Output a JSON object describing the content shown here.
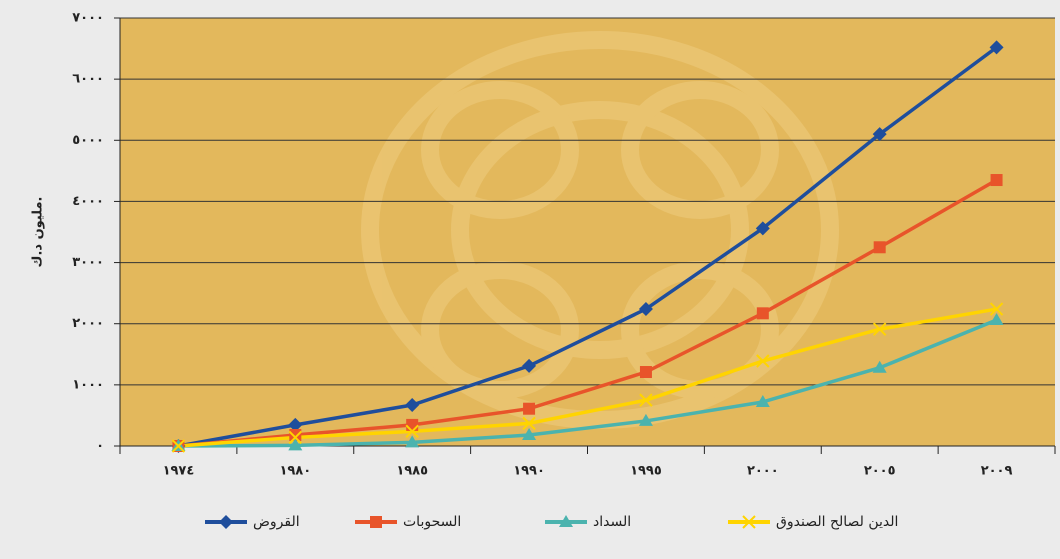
{
  "chart_data": {
    "type": "line",
    "y_label": "مليون د.ك.",
    "categories": [
      "١٩٧٤",
      "١٩٨٠",
      "١٩٨٥",
      "١٩٩٠",
      "١٩٩٥",
      "٢٠٠٠",
      "٢٠٠٥",
      "٢٠٠٩"
    ],
    "series": [
      {
        "name": "القروض",
        "color": "#1f4e9c",
        "marker": "diamond",
        "values": [
          0,
          345,
          670,
          1310,
          2240,
          3560,
          5100,
          6520
        ]
      },
      {
        "name": "السحوبات",
        "color": "#e8542a",
        "marker": "square",
        "values": [
          0,
          180,
          345,
          610,
          1210,
          2170,
          3250,
          4350
        ]
      },
      {
        "name": "السداد",
        "color": "#4bb3ae",
        "marker": "triangle",
        "values": [
          0,
          10,
          60,
          180,
          410,
          720,
          1280,
          2060
        ]
      },
      {
        "name": "الدين لصالح الصندوق",
        "color": "#ffd400",
        "marker": "x",
        "values": [
          0,
          140,
          240,
          370,
          750,
          1390,
          1910,
          2240
        ]
      }
    ],
    "ylim": [
      0,
      7000
    ],
    "yticks": [
      {
        "value": 0,
        "label": "٠"
      },
      {
        "value": 1000,
        "label": "١٠٠٠"
      },
      {
        "value": 2000,
        "label": "٢٠٠٠"
      },
      {
        "value": 3000,
        "label": "٣٠٠٠"
      },
      {
        "value": 4000,
        "label": "٤٠٠٠"
      },
      {
        "value": 5000,
        "label": "٥٠٠٠"
      },
      {
        "value": 6000,
        "label": "٦٠٠٠"
      },
      {
        "value": 7000,
        "label": "٧٠٠٠"
      }
    ],
    "grid": true
  }
}
